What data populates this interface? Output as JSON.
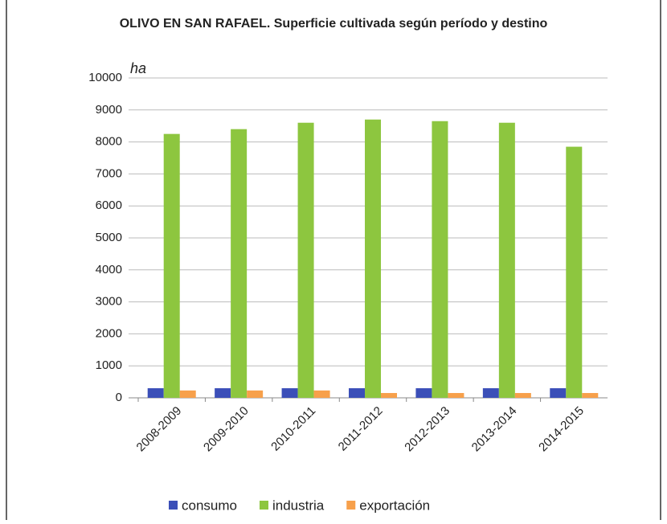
{
  "chart_data": {
    "type": "bar",
    "title": "OLIVO EN SAN RAFAEL. Superficie cultivada según período y destino",
    "y_label": "ha",
    "categories": [
      "2008-2009",
      "2009-2010",
      "2010-2011",
      "2011-2012",
      "2012-2013",
      "2013-2014",
      "2014-2015"
    ],
    "series": [
      {
        "name": "consumo",
        "color": "#3b4fb8",
        "values": [
          300,
          300,
          300,
          300,
          300,
          300,
          300
        ]
      },
      {
        "name": "industria",
        "color": "#8dc63f",
        "values": [
          8250,
          8400,
          8600,
          8700,
          8650,
          8600,
          7850
        ]
      },
      {
        "name": "exportación",
        "color": "#f7a04b",
        "values": [
          230,
          230,
          230,
          150,
          150,
          150,
          150
        ]
      }
    ],
    "ylim": [
      0,
      10000
    ],
    "yticks": [
      0,
      1000,
      2000,
      3000,
      4000,
      5000,
      6000,
      7000,
      8000,
      9000,
      10000
    ],
    "grid": true,
    "legend": "bottom"
  }
}
